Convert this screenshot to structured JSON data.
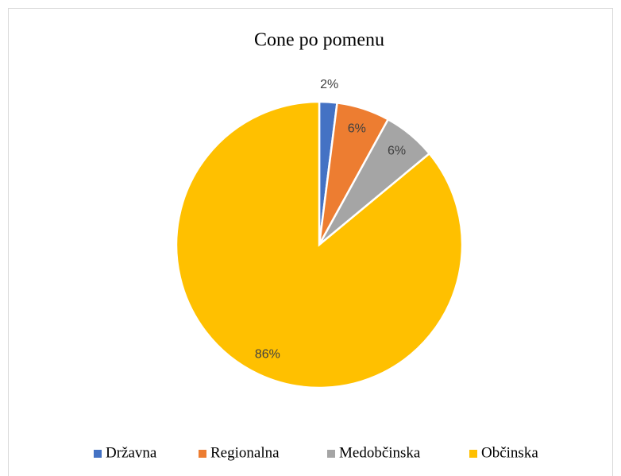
{
  "chart_data": {
    "type": "pie",
    "title": "Cone po pomenu",
    "categories": [
      "Državna",
      "Regionalna",
      "Medobčinska",
      "Občinska"
    ],
    "values": [
      2,
      6,
      6,
      86
    ],
    "value_labels": [
      "2%",
      "6%",
      "6%",
      "86%"
    ],
    "colors": [
      "#4472c4",
      "#ed7d31",
      "#a5a5a5",
      "#ffc000"
    ],
    "legend": "bottom"
  }
}
